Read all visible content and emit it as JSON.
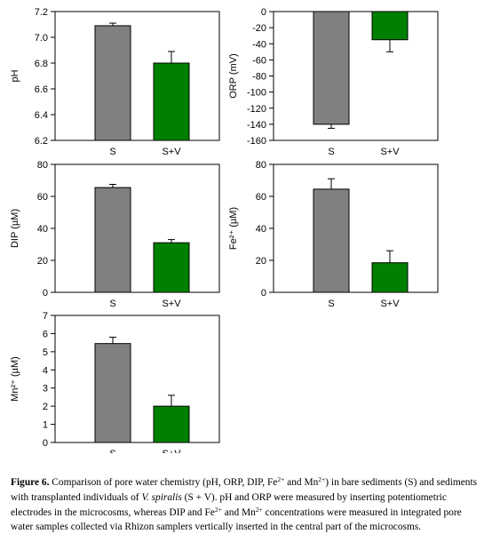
{
  "chart_data": [
    {
      "type": "bar",
      "categories": [
        "S",
        "S+V"
      ],
      "values": [
        7.09,
        6.8
      ],
      "errors": [
        0.02,
        0.09
      ],
      "ylabel": "pH",
      "ylim": [
        6.2,
        7.2
      ],
      "yticks": [
        "6.2",
        "6.4",
        "6.6",
        "6.8",
        "7.0",
        "7.2"
      ],
      "colors": [
        "#808080",
        "#008000"
      ],
      "grid": false
    },
    {
      "type": "bar",
      "categories": [
        "S",
        "S+V"
      ],
      "values": [
        -140,
        -35
      ],
      "errors": [
        5,
        15
      ],
      "ylabel": "ORP (mV)",
      "ylim": [
        -160,
        0
      ],
      "yticks": [
        "-160",
        "-140",
        "-120",
        "-100",
        "-80",
        "-60",
        "-40",
        "-20",
        "0"
      ],
      "colors": [
        "#808080",
        "#008000"
      ],
      "grid": false
    },
    {
      "type": "bar",
      "categories": [
        "S",
        "S+V"
      ],
      "values": [
        65.5,
        31
      ],
      "errors": [
        2,
        2
      ],
      "ylabel": "DIP (µM)",
      "ylim": [
        0,
        80
      ],
      "yticks": [
        "0",
        "20",
        "40",
        "60",
        "80"
      ],
      "colors": [
        "#808080",
        "#008000"
      ],
      "grid": false
    },
    {
      "type": "bar",
      "categories": [
        "S",
        "S+V"
      ],
      "values": [
        64.5,
        18.5
      ],
      "errors": [
        6.5,
        7.5
      ],
      "ylabel": "Fe²⁺ (µM)",
      "ylim": [
        0,
        80
      ],
      "yticks": [
        "0",
        "20",
        "40",
        "60",
        "80"
      ],
      "colors": [
        "#808080",
        "#008000"
      ],
      "grid": false
    },
    {
      "type": "bar",
      "categories": [
        "S",
        "S+V"
      ],
      "values": [
        5.45,
        2.0
      ],
      "errors": [
        0.35,
        0.6
      ],
      "ylabel": "Mn²⁺ (µM)",
      "ylim": [
        0,
        7
      ],
      "yticks": [
        "0",
        "1",
        "2",
        "3",
        "4",
        "5",
        "6",
        "7"
      ],
      "colors": [
        "#808080",
        "#008000"
      ],
      "grid": false
    }
  ],
  "caption": {
    "label": "Figure 6.",
    "text1": " Comparison of pore water chemistry (pH, ORP, DIP, Fe",
    "sup1": "2+",
    "text2": " and Mn",
    "sup2": "2+",
    "text3": ") in bare sediments (S) and sediments with transplanted individuals of ",
    "species": "V. spiralis",
    "text4": " (S + V). pH and ORP were measured by inserting potentiometric electrodes in the microcosms, whereas DIP and Fe",
    "sup3": "2+",
    "text5": " and Mn",
    "sup4": "2+",
    "text6": " concentrations were measured in integrated pore water samples collected via Rhizon samplers vertically inserted in the central part of the microcosms."
  }
}
